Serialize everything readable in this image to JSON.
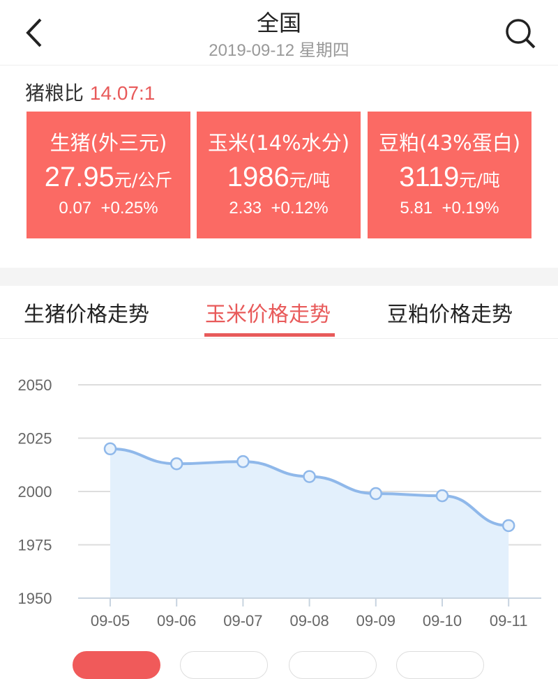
{
  "header": {
    "title": "全国",
    "date": "2019-09-12 星期四",
    "back_icon": "chevron-left-icon",
    "search_icon": "search-icon"
  },
  "ratio": {
    "label": "猪粮比",
    "value": "14.07:1"
  },
  "cards": [
    {
      "name": "生猪(外三元)",
      "price": "27.95",
      "unit": "元/公斤",
      "change": "0.07",
      "pct": "+0.25%"
    },
    {
      "name": "玉米(14%水分)",
      "price": "1986",
      "unit": "元/吨",
      "change": "2.33",
      "pct": "+0.12%"
    },
    {
      "name": "豆粕(43%蛋白)",
      "price": "3119",
      "unit": "元/吨",
      "change": "5.81",
      "pct": "+0.19%"
    }
  ],
  "tabs": [
    {
      "label": "生猪价格走势"
    },
    {
      "label": "玉米价格走势",
      "active": true
    },
    {
      "label": "豆粕价格走势"
    }
  ],
  "colors": {
    "accent": "#e85a5a",
    "card": "#fb6a64",
    "line": "#8fb8ea",
    "fill": "#e3f0fc"
  },
  "chart_data": {
    "type": "area",
    "categories": [
      "09-05",
      "09-06",
      "09-07",
      "09-08",
      "09-09",
      "09-10",
      "09-11"
    ],
    "values": [
      2020,
      2013,
      2014,
      2007,
      1999,
      1998,
      1984
    ],
    "yticks": [
      1950,
      1975,
      2000,
      2025,
      2050
    ],
    "ylim": [
      1950,
      2050
    ],
    "grid": true
  }
}
